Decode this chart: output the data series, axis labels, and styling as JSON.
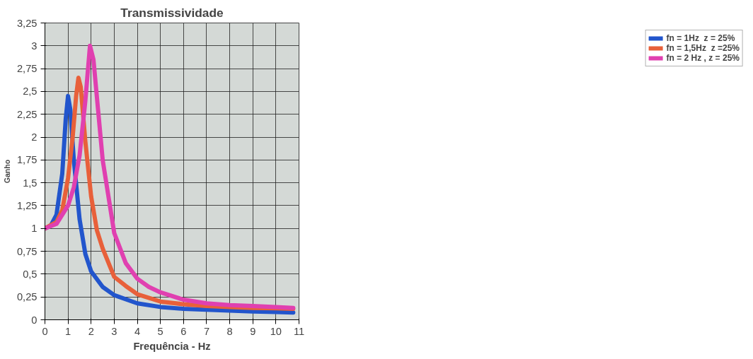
{
  "chart_data": {
    "type": "line",
    "title": "Transmissividade",
    "xlabel": "Frequência - Hz",
    "ylabel": "Ganho",
    "xlim": [
      0,
      11
    ],
    "xticks": [
      0,
      1,
      2,
      3,
      4,
      5,
      6,
      7,
      8,
      9,
      10,
      11
    ],
    "ylim": [
      0,
      3.25
    ],
    "yticks": [
      {
        "value": 0,
        "label": "0"
      },
      {
        "value": 0.25,
        "label": "0,25"
      },
      {
        "value": 0.5,
        "label": "0,5"
      },
      {
        "value": 0.75,
        "label": "0,75"
      },
      {
        "value": 1,
        "label": "1"
      },
      {
        "value": 1.25,
        "label": "1,25"
      },
      {
        "value": 1.5,
        "label": "1,5"
      },
      {
        "value": 1.75,
        "label": "1,75"
      },
      {
        "value": 2,
        "label": "2"
      },
      {
        "value": 2.25,
        "label": "2,25"
      },
      {
        "value": 2.5,
        "label": "2,5"
      },
      {
        "value": 2.75,
        "label": "2,75"
      },
      {
        "value": 3,
        "label": "3"
      },
      {
        "value": 3.25,
        "label": "3,25"
      }
    ],
    "grid": true,
    "legend": "right",
    "marker": "none",
    "line_style": "solid",
    "series": [
      {
        "name": "fn = 1Hz  z = 25%",
        "color": "#2255cc",
        "x": [
          0,
          0.25,
          0.5,
          0.75,
          0.9,
          1.0,
          1.1,
          1.25,
          1.5,
          1.75,
          2,
          2.5,
          3,
          4,
          5,
          6,
          7,
          8,
          9,
          10,
          10.75
        ],
        "values": [
          1.0,
          1.03,
          1.15,
          1.6,
          2.2,
          2.45,
          2.3,
          1.75,
          1.1,
          0.72,
          0.53,
          0.36,
          0.27,
          0.18,
          0.14,
          0.12,
          0.11,
          0.1,
          0.09,
          0.085,
          0.08
        ]
      },
      {
        "name": "fn = 1,5Hz  z =25%",
        "color": "#e8603a",
        "x": [
          0,
          0.5,
          0.75,
          1,
          1.2,
          1.35,
          1.45,
          1.55,
          1.75,
          2,
          2.25,
          2.5,
          3,
          3.5,
          4,
          5,
          6,
          7,
          8,
          9,
          10,
          10.75
        ],
        "values": [
          1.0,
          1.07,
          1.2,
          1.55,
          2.0,
          2.45,
          2.65,
          2.55,
          1.95,
          1.35,
          0.98,
          0.78,
          0.47,
          0.37,
          0.28,
          0.2,
          0.17,
          0.15,
          0.14,
          0.13,
          0.125,
          0.12
        ]
      },
      {
        "name": "fn = 2 Hz , z = 25%",
        "color": "#e040b0",
        "x": [
          0,
          0.5,
          1,
          1.25,
          1.5,
          1.75,
          1.95,
          2.1,
          2.3,
          2.5,
          3,
          3.5,
          4,
          4.5,
          5,
          6,
          7,
          8,
          9,
          10,
          10.75
        ],
        "values": [
          1.0,
          1.05,
          1.25,
          1.45,
          1.8,
          2.4,
          3.0,
          2.85,
          2.3,
          1.75,
          0.95,
          0.62,
          0.45,
          0.36,
          0.3,
          0.22,
          0.18,
          0.16,
          0.15,
          0.14,
          0.13
        ]
      }
    ]
  }
}
